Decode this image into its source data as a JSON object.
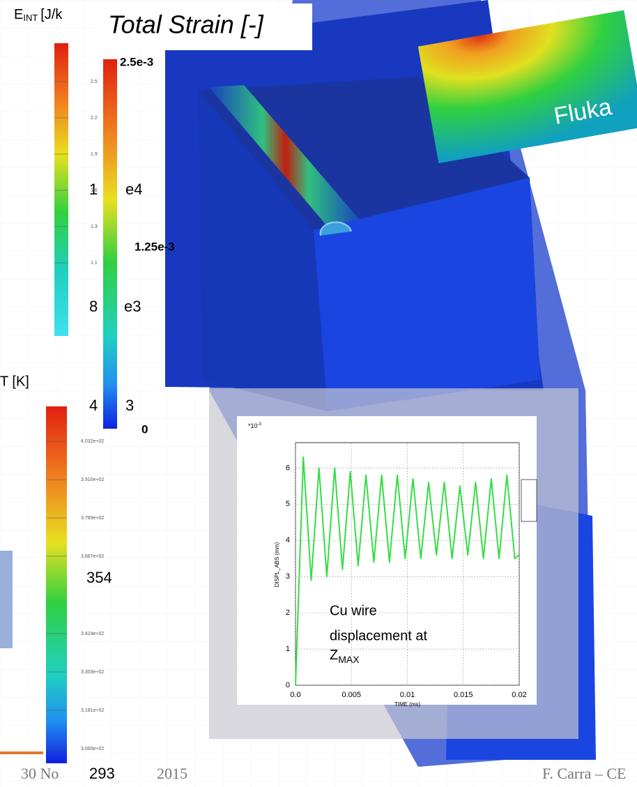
{
  "header": {
    "title": "Total Strain [-]"
  },
  "eint_bar": {
    "symbol": "E",
    "subscript": "INT",
    "unit": "[J/k",
    "ticks": [
      "2.5",
      "2.2",
      "1.9",
      "1.6",
      "1.3",
      "1.1"
    ],
    "big_labels": [
      "1",
      "e4",
      "8",
      "e3",
      "4",
      "3"
    ]
  },
  "strain_bar": {
    "labels": [
      "2.5e-3",
      "1.25e-3",
      "0"
    ]
  },
  "temp_bar": {
    "label": "T [K]",
    "ticks": [
      "4.032e+02",
      "3.910e+02",
      "3.789e+02",
      "3.667e+02",
      "3.424e+02",
      "3.303e+02",
      "3.181e+02",
      "3.060e+02"
    ],
    "big_labels": [
      "354",
      "293"
    ]
  },
  "fluka": "Fluka",
  "plot": {
    "multiplier": "*10",
    "exponent": "-3",
    "ylabel": "DISPL_ABS (mm)",
    "xlabel": "TIME (ms)",
    "xlim": [
      0,
      0.02
    ],
    "ylim": [
      0,
      6.7
    ],
    "xticks": [
      {
        "value": 0,
        "label": "0.0"
      },
      0.005,
      0.01,
      0.015,
      0.02
    ],
    "yticks": [
      0,
      1,
      2,
      3,
      4,
      5,
      6
    ],
    "color": "#33dd44",
    "x": [
      0,
      0.0007,
      0.0014,
      0.0021,
      0.0028,
      0.0035,
      0.0042,
      0.0049,
      0.0056,
      0.0063,
      0.007,
      0.0077,
      0.0084,
      0.0091,
      0.0098,
      0.0105,
      0.0112,
      0.0119,
      0.0126,
      0.0133,
      0.014,
      0.0147,
      0.0154,
      0.0161,
      0.0168,
      0.0175,
      0.0182,
      0.0189,
      0.0196,
      0.02
    ],
    "y": [
      0,
      6.3,
      2.9,
      6.0,
      3.0,
      6.0,
      3.2,
      5.9,
      3.3,
      5.8,
      3.4,
      5.8,
      3.4,
      5.8,
      3.5,
      5.7,
      3.5,
      5.6,
      3.6,
      5.6,
      3.5,
      5.5,
      3.6,
      5.6,
      3.5,
      5.7,
      3.5,
      5.8,
      3.5,
      3.6
    ],
    "annotation": {
      "line1": "Cu wire",
      "line2": "displacement at",
      "symbol": "Z",
      "subscript": "MAX"
    }
  },
  "footer": {
    "date_start": "30 No",
    "date_end": "2015",
    "author": "F. Carra – CE"
  }
}
